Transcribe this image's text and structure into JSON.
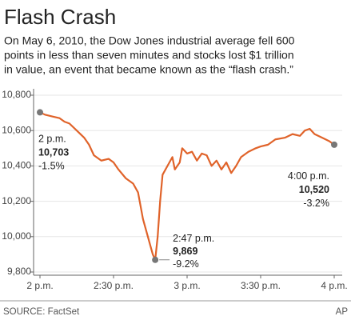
{
  "chart_data": {
    "type": "line",
    "title": "Flash Crash",
    "subtitle": [
      "On May 6, 2010, the Dow Jones industrial average fell 600",
      "points in less than seven minutes and stocks lost $1 trillion",
      "in value, an event that became known as the “flash crash.”"
    ],
    "x": [
      0,
      2,
      5,
      8,
      10,
      12,
      15,
      18,
      20,
      22,
      25,
      28,
      30,
      32,
      35,
      38,
      40,
      42,
      44,
      46,
      47,
      48,
      49,
      50,
      52,
      54,
      55,
      57,
      58,
      60,
      62,
      64,
      66,
      68,
      70,
      72,
      74,
      76,
      78,
      80,
      82,
      85,
      88,
      90,
      93,
      96,
      100,
      103,
      106,
      108,
      110,
      112,
      115,
      118,
      120
    ],
    "series": [
      {
        "name": "Dow Jones industrial average",
        "color": "#e0632a",
        "values": [
          10703,
          10690,
          10680,
          10670,
          10650,
          10640,
          10600,
          10560,
          10520,
          10460,
          10430,
          10440,
          10420,
          10380,
          10330,
          10300,
          10250,
          10100,
          10000,
          9900,
          9869,
          10000,
          10200,
          10350,
          10400,
          10450,
          10380,
          10420,
          10500,
          10470,
          10480,
          10430,
          10470,
          10460,
          10400,
          10430,
          10380,
          10420,
          10360,
          10400,
          10450,
          10480,
          10500,
          10510,
          10520,
          10550,
          10560,
          10580,
          10570,
          10600,
          10610,
          10580,
          10560,
          10540,
          10520
        ]
      }
    ],
    "xlim": [
      0,
      120
    ],
    "xticks": [
      {
        "value": 0,
        "label": "2 p.m."
      },
      {
        "value": 30,
        "label": "2:30 p.m."
      },
      {
        "value": 60,
        "label": "3 p.m."
      },
      {
        "value": 90,
        "label": "3:30 p.m."
      },
      {
        "value": 120,
        "label": "4 p.m."
      }
    ],
    "ylim": [
      9800,
      10800
    ],
    "yticks": [
      {
        "value": 9800,
        "label": "9,800"
      },
      {
        "value": 10000,
        "label": "10,000"
      },
      {
        "value": 10200,
        "label": "10,200"
      },
      {
        "value": 10400,
        "label": "10,400"
      },
      {
        "value": 10600,
        "label": "10,600"
      },
      {
        "value": 10800,
        "label": "10,800"
      }
    ],
    "grid": true,
    "annotations": [
      {
        "x": 0,
        "y": 10703,
        "lines": [
          "2 p.m.",
          "10,703",
          "-1.5%"
        ]
      },
      {
        "x": 47,
        "y": 9869,
        "lines": [
          "2:47 p.m.",
          "9,869",
          "-9.2%"
        ]
      },
      {
        "x": 120,
        "y": 10520,
        "lines": [
          "4:00 p.m.",
          "10,520",
          "-3.2%"
        ]
      }
    ],
    "source": "SOURCE: FactSet",
    "credit": "AP"
  }
}
